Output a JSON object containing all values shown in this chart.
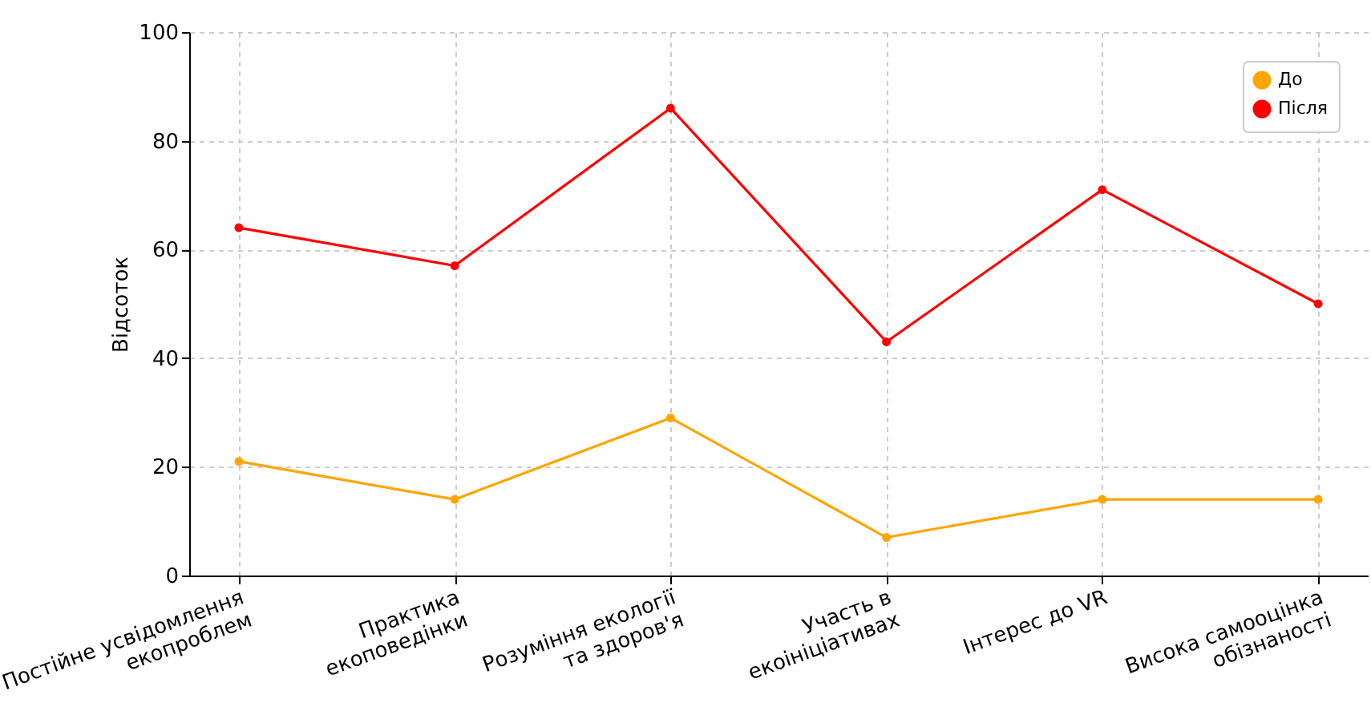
{
  "chart_data": {
    "type": "line",
    "categories": [
      "Постійне усвідомлення\nекопроблем",
      "Практика\nекоповедінки",
      "Розуміння екології\nта здоров'я",
      "Участь в\nекоініціативах",
      "Інтерес до VR",
      "Висока самооцінка\nобізнаності"
    ],
    "series": [
      {
        "name": "До",
        "color": "#ffa500",
        "values": [
          21,
          14,
          29,
          7,
          14,
          14
        ]
      },
      {
        "name": "Після",
        "color": "#ff0000",
        "values": [
          64,
          57,
          86,
          43,
          71,
          50
        ]
      }
    ],
    "ylabel": "Відсоток",
    "ylim": [
      0,
      100
    ],
    "yticks": [
      0,
      20,
      40,
      60,
      80,
      100
    ],
    "grid": true,
    "legend": "top right",
    "marker": "circle",
    "line_style": "solid"
  }
}
